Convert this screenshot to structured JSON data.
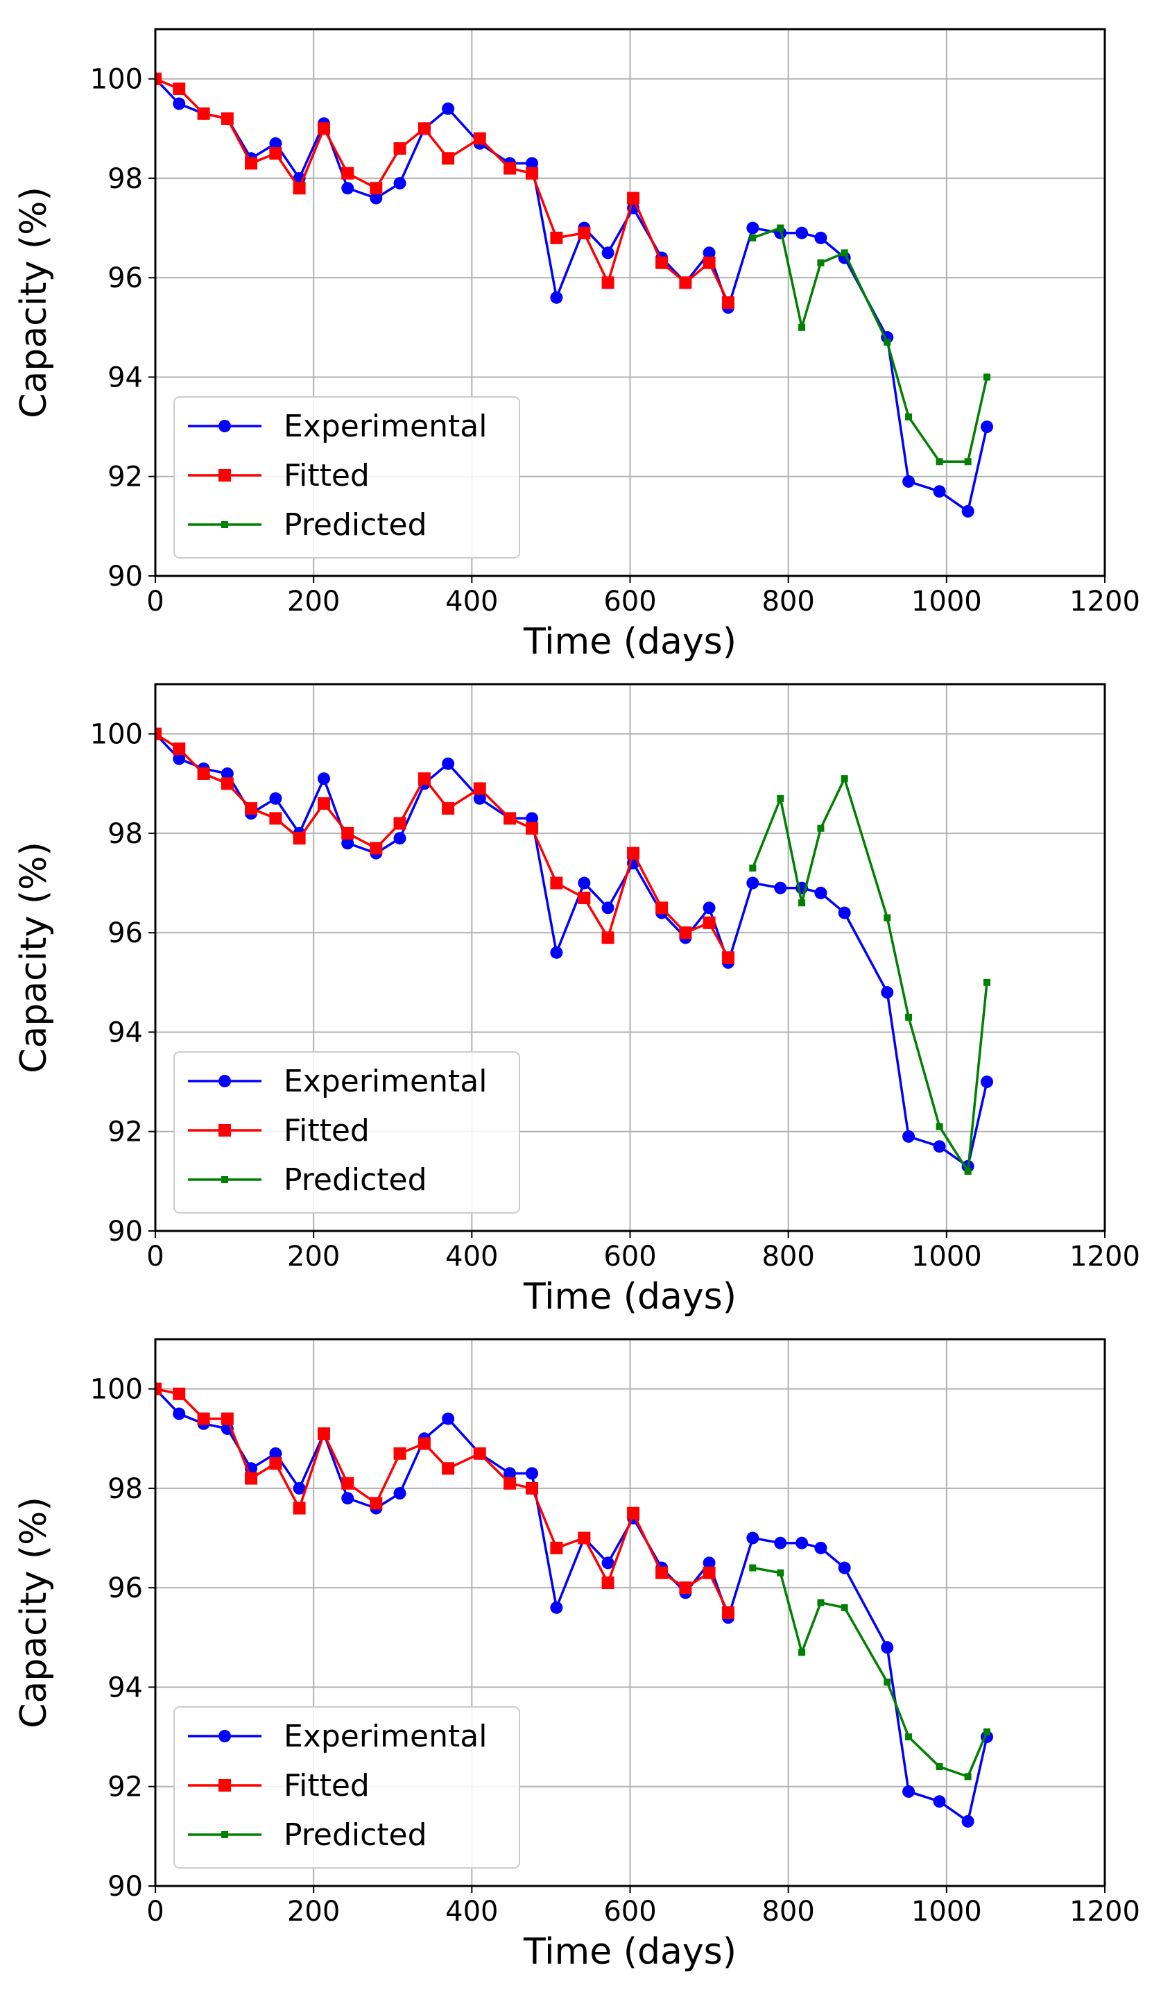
{
  "colors": {
    "experimental": "#0000ff",
    "fitted": "#ff0000",
    "predicted": "#008000",
    "grid": "#b0b0b0",
    "axes": "#000000"
  },
  "chart_data": [
    {
      "type": "line",
      "title": "",
      "xlabel": "Time (days)",
      "ylabel": "Capacity (%)",
      "xlim": [
        0,
        1200
      ],
      "ylim": [
        90,
        101
      ],
      "xticks": [
        "0",
        "200",
        "400",
        "600",
        "800",
        "1000",
        "1200"
      ],
      "yticks": [
        "90",
        "92",
        "94",
        "96",
        "98",
        "100"
      ],
      "grid": true,
      "legend": "lower-left",
      "series": [
        {
          "name": "Experimental",
          "marker": "circle",
          "x": [
            0,
            30,
            61,
            91,
            121,
            152,
            182,
            213,
            243,
            279,
            309,
            340,
            370,
            410,
            448,
            476,
            507,
            542,
            572,
            604,
            640,
            670,
            700,
            724,
            755,
            790,
            817,
            841,
            871,
            925,
            952,
            991,
            1027,
            1051
          ],
          "y": [
            100.0,
            99.5,
            99.3,
            99.2,
            98.4,
            98.7,
            98.0,
            99.1,
            97.8,
            97.6,
            97.9,
            99.0,
            99.4,
            98.7,
            98.3,
            98.3,
            95.6,
            97.0,
            96.5,
            97.4,
            96.4,
            95.9,
            96.5,
            95.4,
            97.0,
            96.9,
            96.9,
            96.8,
            96.4,
            94.8,
            91.9,
            91.7,
            91.3,
            93.0
          ]
        },
        {
          "name": "Fitted",
          "marker": "square",
          "x": [
            0,
            30,
            61,
            91,
            121,
            152,
            182,
            213,
            243,
            279,
            309,
            340,
            370,
            410,
            448,
            476,
            507,
            542,
            572,
            604,
            640,
            670,
            700,
            724
          ],
          "y": [
            100.0,
            99.8,
            99.3,
            99.2,
            98.3,
            98.5,
            97.8,
            99.0,
            98.1,
            97.8,
            98.6,
            99.0,
            98.4,
            98.8,
            98.2,
            98.1,
            96.8,
            96.9,
            95.9,
            97.6,
            96.3,
            95.9,
            96.3,
            95.5
          ]
        },
        {
          "name": "Predicted",
          "marker": "small-square",
          "x": [
            755,
            790,
            817,
            841,
            871,
            925,
            952,
            991,
            1027,
            1051
          ],
          "y": [
            96.8,
            97.0,
            95.0,
            96.3,
            96.5,
            94.7,
            93.2,
            92.3,
            92.3,
            94.0
          ]
        }
      ]
    },
    {
      "type": "line",
      "title": "",
      "xlabel": "Time (days)",
      "ylabel": "Capacity (%)",
      "xlim": [
        0,
        1200
      ],
      "ylim": [
        90,
        101
      ],
      "xticks": [
        "0",
        "200",
        "400",
        "600",
        "800",
        "1000",
        "1200"
      ],
      "yticks": [
        "90",
        "92",
        "94",
        "96",
        "98",
        "100"
      ],
      "grid": true,
      "legend": "lower-left",
      "series": [
        {
          "name": "Experimental",
          "marker": "circle",
          "x": [
            0,
            30,
            61,
            91,
            121,
            152,
            182,
            213,
            243,
            279,
            309,
            340,
            370,
            410,
            448,
            476,
            507,
            542,
            572,
            604,
            640,
            670,
            700,
            724,
            755,
            790,
            817,
            841,
            871,
            925,
            952,
            991,
            1027,
            1051
          ],
          "y": [
            100.0,
            99.5,
            99.3,
            99.2,
            98.4,
            98.7,
            98.0,
            99.1,
            97.8,
            97.6,
            97.9,
            99.0,
            99.4,
            98.7,
            98.3,
            98.3,
            95.6,
            97.0,
            96.5,
            97.4,
            96.4,
            95.9,
            96.5,
            95.4,
            97.0,
            96.9,
            96.9,
            96.8,
            96.4,
            94.8,
            91.9,
            91.7,
            91.3,
            93.0
          ]
        },
        {
          "name": "Fitted",
          "marker": "square",
          "x": [
            0,
            30,
            61,
            91,
            121,
            152,
            182,
            213,
            243,
            279,
            309,
            340,
            370,
            410,
            448,
            476,
            507,
            542,
            572,
            604,
            640,
            670,
            700,
            724
          ],
          "y": [
            100.0,
            99.7,
            99.2,
            99.0,
            98.5,
            98.3,
            97.9,
            98.6,
            98.0,
            97.7,
            98.2,
            99.1,
            98.5,
            98.9,
            98.3,
            98.1,
            97.0,
            96.7,
            95.9,
            97.6,
            96.5,
            96.0,
            96.2,
            95.5
          ]
        },
        {
          "name": "Predicted",
          "marker": "small-square",
          "x": [
            755,
            790,
            817,
            841,
            871,
            925,
            952,
            991,
            1027,
            1051
          ],
          "y": [
            97.3,
            98.7,
            96.6,
            98.1,
            99.1,
            96.3,
            94.3,
            92.1,
            91.2,
            95.0
          ]
        }
      ]
    },
    {
      "type": "line",
      "title": "",
      "xlabel": "Time (days)",
      "ylabel": "Capacity (%)",
      "xlim": [
        0,
        1200
      ],
      "ylim": [
        90,
        101
      ],
      "xticks": [
        "0",
        "200",
        "400",
        "600",
        "800",
        "1000",
        "1200"
      ],
      "yticks": [
        "90",
        "92",
        "94",
        "96",
        "98",
        "100"
      ],
      "grid": true,
      "legend": "lower-left",
      "series": [
        {
          "name": "Experimental",
          "marker": "circle",
          "x": [
            0,
            30,
            61,
            91,
            121,
            152,
            182,
            213,
            243,
            279,
            309,
            340,
            370,
            410,
            448,
            476,
            507,
            542,
            572,
            604,
            640,
            670,
            700,
            724,
            755,
            790,
            817,
            841,
            871,
            925,
            952,
            991,
            1027,
            1051
          ],
          "y": [
            100.0,
            99.5,
            99.3,
            99.2,
            98.4,
            98.7,
            98.0,
            99.1,
            97.8,
            97.6,
            97.9,
            99.0,
            99.4,
            98.7,
            98.3,
            98.3,
            95.6,
            97.0,
            96.5,
            97.4,
            96.4,
            95.9,
            96.5,
            95.4,
            97.0,
            96.9,
            96.9,
            96.8,
            96.4,
            94.8,
            91.9,
            91.7,
            91.3,
            93.0
          ]
        },
        {
          "name": "Fitted",
          "marker": "square",
          "x": [
            0,
            30,
            61,
            91,
            121,
            152,
            182,
            213,
            243,
            279,
            309,
            340,
            370,
            410,
            448,
            476,
            507,
            542,
            572,
            604,
            640,
            670,
            700,
            724
          ],
          "y": [
            100.0,
            99.9,
            99.4,
            99.4,
            98.2,
            98.5,
            97.6,
            99.1,
            98.1,
            97.7,
            98.7,
            98.9,
            98.4,
            98.7,
            98.1,
            98.0,
            96.8,
            97.0,
            96.1,
            97.5,
            96.3,
            96.0,
            96.3,
            95.5
          ]
        },
        {
          "name": "Predicted",
          "marker": "small-square",
          "x": [
            755,
            790,
            817,
            841,
            871,
            925,
            952,
            991,
            1027,
            1051
          ],
          "y": [
            96.4,
            96.3,
            94.7,
            95.7,
            95.6,
            94.1,
            93.0,
            92.4,
            92.2,
            93.1
          ]
        }
      ]
    }
  ]
}
